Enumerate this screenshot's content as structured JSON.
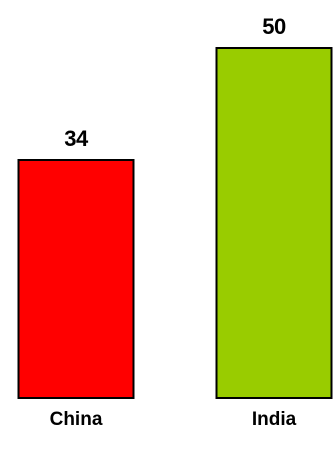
{
  "chart_data": {
    "type": "bar",
    "categories": [
      "China",
      "India"
    ],
    "values": [
      34,
      50
    ],
    "colors": [
      "#ff0000",
      "#99cc00"
    ],
    "data_labels": [
      "34",
      "50"
    ],
    "title": "",
    "xlabel": "",
    "ylabel": "",
    "ylim": [
      0,
      50
    ],
    "grid": false,
    "legend": "none"
  }
}
